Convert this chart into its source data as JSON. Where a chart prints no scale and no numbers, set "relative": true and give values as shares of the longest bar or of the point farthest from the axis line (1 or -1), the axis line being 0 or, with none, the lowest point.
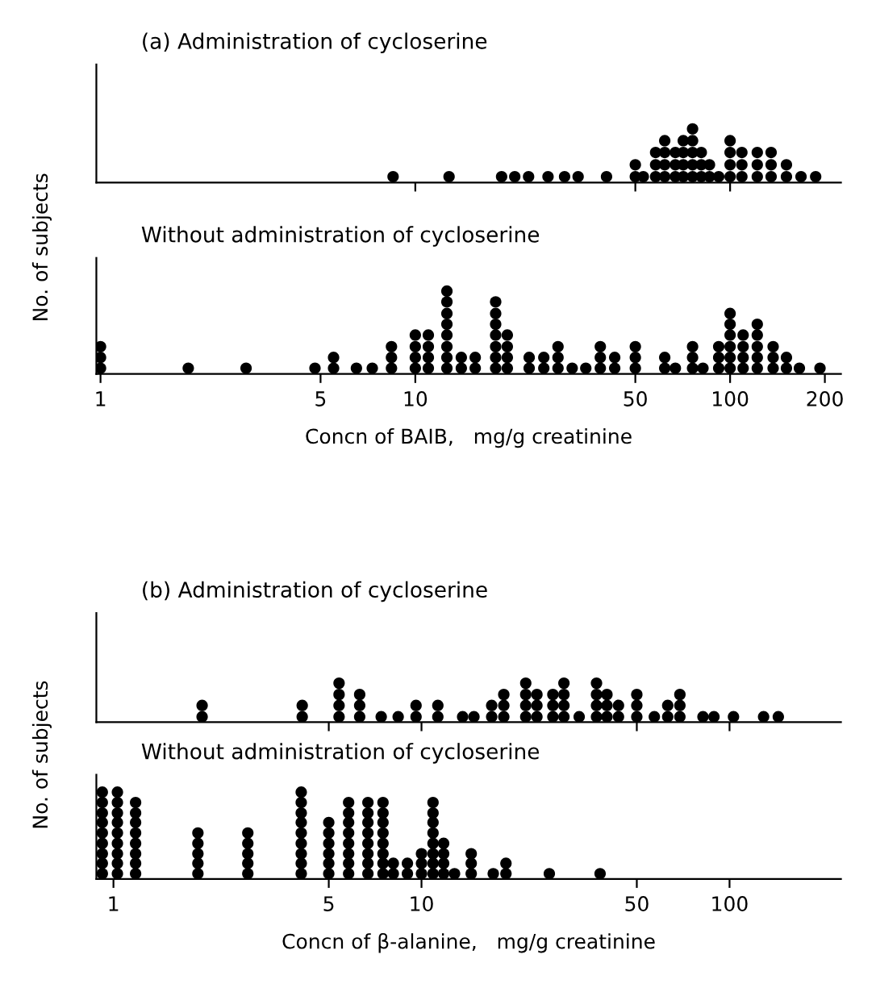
{
  "chart_data": [
    {
      "type": "scatter",
      "title": "(a) Administration of cycloserine",
      "ylabel": "No. of subjects",
      "log": "x",
      "marker": "circle",
      "color": "#000000",
      "tick_labels": false,
      "relative": true,
      "xlim": [
        0.97,
        225
      ],
      "xticks": [
        {
          "value": 10,
          "label": null
        },
        {
          "value": 50,
          "label": null
        },
        {
          "value": 100,
          "label": null
        }
      ],
      "x": [
        8.5,
        12.8,
        18.8,
        20.7,
        22.9,
        26.4,
        29.8,
        32.9,
        40.5,
        50,
        50,
        53,
        58,
        58,
        58,
        62,
        62,
        62,
        62,
        67,
        67,
        67,
        71,
        71,
        71,
        71,
        76,
        76,
        76,
        76,
        76,
        81,
        81,
        81,
        86,
        86,
        92,
        100,
        100,
        100,
        100,
        109,
        109,
        109,
        122,
        122,
        122,
        135,
        135,
        135,
        151,
        151,
        168,
        187
      ],
      "values": [
        0.11,
        0.11,
        0.11,
        0.11,
        0.11,
        0.11,
        0.11,
        0.11,
        0.11,
        0.11,
        0.33,
        0.11,
        0.11,
        0.33,
        0.56,
        0.11,
        0.33,
        0.56,
        0.78,
        0.11,
        0.33,
        0.56,
        0.11,
        0.33,
        0.56,
        0.78,
        0.11,
        0.33,
        0.56,
        0.78,
        1,
        0.11,
        0.33,
        0.56,
        0.11,
        0.33,
        0.11,
        0.11,
        0.33,
        0.56,
        0.78,
        0.11,
        0.33,
        0.56,
        0.11,
        0.33,
        0.56,
        0.11,
        0.33,
        0.56,
        0.11,
        0.33,
        0.11,
        0.11
      ]
    },
    {
      "type": "scatter",
      "title": "Without administration of cycloserine",
      "xlabel": "Concn of BAIB,   mg/g creatinine",
      "log": "x",
      "marker": "circle",
      "color": "#000000",
      "tick_labels": "x",
      "relative": true,
      "xlim": [
        0.97,
        225
      ],
      "xticks": [
        1,
        5,
        10,
        50,
        100,
        200
      ],
      "x": [
        1,
        1,
        1,
        1.9,
        2.9,
        4.8,
        5.5,
        5.5,
        6.5,
        7.3,
        8.4,
        8.4,
        8.4,
        10,
        10,
        10,
        10,
        11,
        11,
        11,
        11,
        12.6,
        12.6,
        12.6,
        12.6,
        12.6,
        12.6,
        12.6,
        12.6,
        14,
        14,
        15.5,
        15.5,
        18,
        18,
        18,
        18,
        18,
        18,
        18,
        19.6,
        19.6,
        19.6,
        19.6,
        23,
        23,
        25.6,
        25.6,
        28.4,
        28.4,
        28.4,
        31.5,
        34.8,
        38.7,
        38.7,
        38.7,
        43,
        43,
        50,
        50,
        50,
        62,
        62,
        67,
        76,
        76,
        76,
        82,
        92,
        92,
        92,
        100,
        100,
        100,
        100,
        100,
        100,
        110,
        110,
        110,
        110,
        122,
        122,
        122,
        122,
        122,
        137,
        137,
        137,
        151,
        151,
        166,
        193
      ],
      "values": [
        0.07,
        0.2,
        0.33,
        0.07,
        0.07,
        0.07,
        0.07,
        0.2,
        0.07,
        0.07,
        0.07,
        0.2,
        0.33,
        0.07,
        0.2,
        0.33,
        0.47,
        0.07,
        0.2,
        0.33,
        0.47,
        0.07,
        0.2,
        0.33,
        0.47,
        0.6,
        0.73,
        0.87,
        1,
        0.07,
        0.2,
        0.07,
        0.2,
        0.07,
        0.2,
        0.33,
        0.47,
        0.6,
        0.73,
        0.87,
        0.07,
        0.2,
        0.33,
        0.47,
        0.07,
        0.2,
        0.07,
        0.2,
        0.07,
        0.2,
        0.33,
        0.07,
        0.07,
        0.07,
        0.2,
        0.33,
        0.07,
        0.2,
        0.07,
        0.2,
        0.33,
        0.07,
        0.2,
        0.07,
        0.07,
        0.2,
        0.33,
        0.07,
        0.07,
        0.2,
        0.33,
        0.07,
        0.2,
        0.33,
        0.47,
        0.6,
        0.73,
        0.07,
        0.2,
        0.33,
        0.47,
        0.07,
        0.2,
        0.33,
        0.47,
        0.6,
        0.07,
        0.2,
        0.33,
        0.07,
        0.2,
        0.07,
        0.07
      ]
    },
    {
      "type": "scatter",
      "title": "(b) Administration of cycloserine",
      "ylabel": "No. of subjects",
      "log": "x",
      "marker": "circle",
      "color": "#000000",
      "tick_labels": false,
      "relative": true,
      "xlim": [
        0.88,
        230
      ],
      "xticks": [
        {
          "value": 5,
          "label": null
        },
        {
          "value": 10,
          "label": null
        },
        {
          "value": 50,
          "label": null
        },
        {
          "value": 100,
          "label": null
        }
      ],
      "x": [
        1.94,
        1.94,
        4.1,
        4.1,
        5.4,
        5.4,
        5.4,
        5.4,
        6.3,
        6.3,
        6.3,
        7.4,
        8.4,
        9.6,
        9.6,
        11.3,
        11.3,
        13.6,
        14.8,
        16.9,
        16.9,
        18.5,
        18.5,
        18.5,
        21.8,
        21.8,
        21.8,
        21.8,
        23.7,
        23.7,
        23.7,
        26.7,
        26.7,
        26.7,
        29,
        29,
        29,
        29,
        32.5,
        37,
        37,
        37,
        37,
        40,
        40,
        40,
        43.6,
        43.6,
        50,
        50,
        50,
        57,
        63,
        63,
        69,
        69,
        69,
        82,
        89,
        103,
        129,
        144
      ],
      "values": [
        0.14,
        0.43,
        0.14,
        0.43,
        0.14,
        0.43,
        0.71,
        1,
        0.14,
        0.43,
        0.71,
        0.14,
        0.14,
        0.14,
        0.43,
        0.14,
        0.43,
        0.14,
        0.14,
        0.14,
        0.43,
        0.14,
        0.43,
        0.71,
        0.14,
        0.43,
        0.71,
        1,
        0.14,
        0.43,
        0.71,
        0.14,
        0.43,
        0.71,
        0.14,
        0.43,
        0.71,
        1,
        0.14,
        0.14,
        0.43,
        0.71,
        1,
        0.14,
        0.43,
        0.71,
        0.14,
        0.43,
        0.14,
        0.43,
        0.71,
        0.14,
        0.14,
        0.43,
        0.14,
        0.43,
        0.71,
        0.14,
        0.14,
        0.14,
        0.14,
        0.14
      ]
    },
    {
      "type": "scatter",
      "title": "Without administration of cycloserine",
      "xlabel": "Concn of β-alanine,   mg/g creatinine",
      "log": "x",
      "marker": "circle",
      "color": "#000000",
      "tick_labels": "x",
      "relative": true,
      "xlim": [
        0.88,
        230
      ],
      "xticks": [
        1,
        5,
        10,
        50,
        100
      ],
      "x": [
        0.92,
        0.92,
        0.92,
        0.92,
        0.92,
        0.92,
        0.92,
        0.92,
        0.92,
        1.03,
        1.03,
        1.03,
        1.03,
        1.03,
        1.03,
        1.03,
        1.03,
        1.03,
        1.18,
        1.18,
        1.18,
        1.18,
        1.18,
        1.18,
        1.18,
        1.18,
        1.88,
        1.88,
        1.88,
        1.88,
        1.88,
        2.73,
        2.73,
        2.73,
        2.73,
        2.73,
        4.07,
        4.07,
        4.07,
        4.07,
        4.07,
        4.07,
        4.07,
        4.07,
        4.07,
        5,
        5,
        5,
        5,
        5,
        5,
        5.8,
        5.8,
        5.8,
        5.8,
        5.8,
        5.8,
        5.8,
        5.8,
        6.7,
        6.7,
        6.7,
        6.7,
        6.7,
        6.7,
        6.7,
        6.7,
        7.5,
        7.5,
        7.5,
        7.5,
        7.5,
        7.5,
        7.5,
        7.5,
        8.1,
        8.1,
        9,
        9,
        10,
        10,
        10,
        10.9,
        10.9,
        10.9,
        10.9,
        10.9,
        10.9,
        10.9,
        10.9,
        11.8,
        11.8,
        11.8,
        11.8,
        12.8,
        14.5,
        14.5,
        14.5,
        17.1,
        18.8,
        18.8,
        26,
        38
      ],
      "values": [
        0.06,
        0.18,
        0.29,
        0.41,
        0.53,
        0.65,
        0.76,
        0.88,
        1,
        0.06,
        0.18,
        0.29,
        0.41,
        0.53,
        0.65,
        0.76,
        0.88,
        1,
        0.06,
        0.18,
        0.29,
        0.41,
        0.53,
        0.65,
        0.76,
        0.88,
        0.06,
        0.18,
        0.29,
        0.41,
        0.53,
        0.06,
        0.18,
        0.29,
        0.41,
        0.53,
        0.06,
        0.18,
        0.29,
        0.41,
        0.53,
        0.65,
        0.76,
        0.88,
        1,
        0.06,
        0.18,
        0.29,
        0.41,
        0.53,
        0.65,
        0.06,
        0.18,
        0.29,
        0.41,
        0.53,
        0.65,
        0.76,
        0.88,
        0.06,
        0.18,
        0.29,
        0.41,
        0.53,
        0.65,
        0.76,
        0.88,
        0.06,
        0.18,
        0.29,
        0.41,
        0.53,
        0.65,
        0.76,
        0.88,
        0.06,
        0.18,
        0.06,
        0.18,
        0.06,
        0.18,
        0.29,
        0.06,
        0.18,
        0.29,
        0.41,
        0.53,
        0.65,
        0.76,
        0.88,
        0.06,
        0.18,
        0.29,
        0.41,
        0.06,
        0.06,
        0.18,
        0.29,
        0.06,
        0.06,
        0.18,
        0.06,
        0.06
      ]
    }
  ]
}
